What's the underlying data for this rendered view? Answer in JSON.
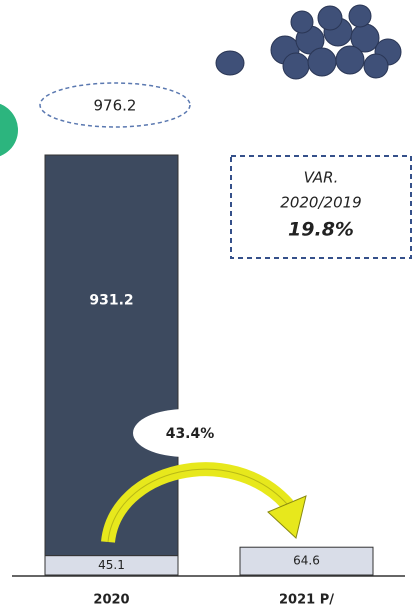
{
  "chart_data": {
    "type": "stacked-bar",
    "categories": [
      "2020",
      "2021 P/"
    ],
    "series": [
      {
        "color": "#d9dde8",
        "values": [
          45.1,
          64.6
        ]
      },
      {
        "color": "#3d4a5f",
        "values": [
          931.2,
          null
        ]
      }
    ],
    "totals": [
      976.2,
      null
    ],
    "change_label": "43.4%",
    "variation": {
      "lines": [
        "VAR.",
        "2020/2019"
      ],
      "value": "19.8%"
    }
  }
}
